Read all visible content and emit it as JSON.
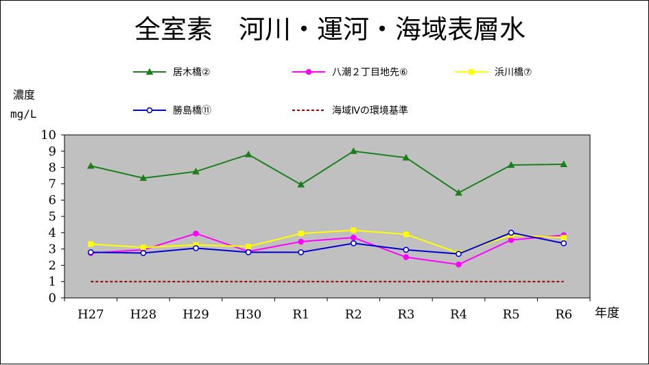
{
  "chart_data": {
    "type": "line",
    "title": "全室素　河川・運河・海域表層水",
    "ylabel_lines": [
      "濃度",
      "mg/L"
    ],
    "xlabel": "年度",
    "categories": [
      "H27",
      "H28",
      "H29",
      "H30",
      "R1",
      "R2",
      "R3",
      "R4",
      "R5",
      "R6"
    ],
    "ylim": [
      0,
      10
    ],
    "yticks": [
      0,
      1,
      2,
      3,
      4,
      5,
      6,
      7,
      8,
      9,
      10
    ],
    "grid": false,
    "legend_position": "top",
    "plot_background": "#c0c0c0",
    "series": [
      {
        "name": "居木橋②",
        "color": "#1a7f1a",
        "marker": "triangle",
        "dash": false,
        "values": [
          8.1,
          7.35,
          7.75,
          8.8,
          6.95,
          9.0,
          8.6,
          6.45,
          8.15,
          8.2
        ]
      },
      {
        "name": "八潮２丁目地先⑥",
        "color": "#ff00ff",
        "marker": "circle",
        "dash": false,
        "values": [
          2.75,
          2.95,
          3.95,
          2.85,
          3.45,
          3.7,
          2.5,
          2.05,
          3.55,
          3.85
        ]
      },
      {
        "name": "浜川橋⑦",
        "color": "#ffff00",
        "marker": "square",
        "dash": false,
        "values": [
          3.3,
          3.1,
          3.25,
          3.15,
          3.95,
          4.15,
          3.9,
          2.75,
          3.85,
          3.7
        ]
      },
      {
        "name": "勝島橋⑪",
        "color": "#0000cc",
        "marker": "open-circle",
        "dash": false,
        "values": [
          2.8,
          2.75,
          3.05,
          2.8,
          2.8,
          3.35,
          2.95,
          2.7,
          4.0,
          3.35
        ]
      },
      {
        "name": "海域Ⅳの環境基準",
        "color": "#8b0000",
        "marker": "none",
        "dash": true,
        "values": [
          1,
          1,
          1,
          1,
          1,
          1,
          1,
          1,
          1,
          1
        ]
      }
    ]
  }
}
